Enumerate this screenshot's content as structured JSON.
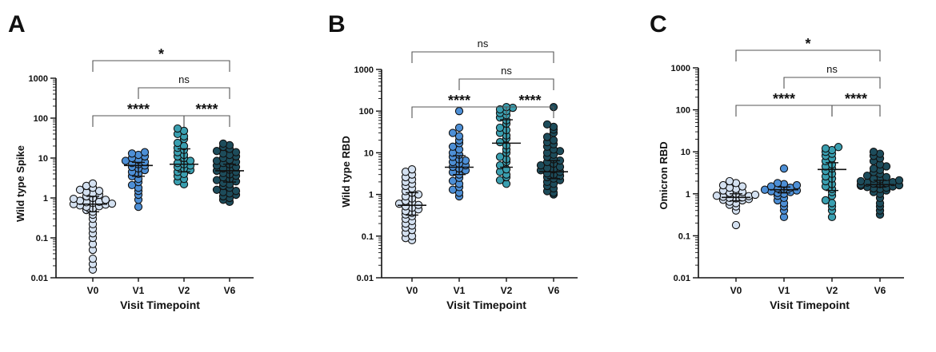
{
  "colors": {
    "V0": "#d4e1f1",
    "V1": "#4d8fd6",
    "V2": "#3a9fb0",
    "V6": "#1d4c5b",
    "stroke": "#111111"
  },
  "chart_data": [
    {
      "panel_label": "A",
      "type": "scatter",
      "ylabel": "Wild type Spike",
      "xlabel": "Visit Timepoint",
      "y_scale": "log",
      "ylim": [
        0.01,
        1000
      ],
      "y_ticks": [
        "0.01",
        "0.1",
        "1",
        "10",
        "100",
        "1000"
      ],
      "categories": [
        "V0",
        "V1",
        "V2",
        "V6"
      ],
      "series": [
        {
          "values": [
            0.016,
            0.022,
            0.03,
            0.05,
            0.07,
            0.1,
            0.13,
            0.17,
            0.22,
            0.3,
            0.38,
            0.45,
            0.5,
            0.55,
            0.6,
            0.62,
            0.65,
            0.68,
            0.7,
            0.72,
            0.75,
            0.78,
            0.8,
            0.85,
            0.9,
            0.95,
            1.0,
            1.1,
            1.2,
            1.3,
            1.4,
            1.5,
            1.6,
            1.8,
            2.0,
            2.3
          ]
        },
        {
          "values": [
            0.6,
            0.9,
            1.2,
            1.5,
            1.8,
            2.1,
            2.5,
            3.0,
            3.5,
            4.0,
            4.5,
            5.0,
            5.5,
            6.0,
            6.5,
            7.0,
            7.5,
            8.0,
            8.5,
            9.0,
            10,
            11,
            12,
            13,
            14
          ]
        },
        {
          "values": [
            2.2,
            2.6,
            3.0,
            3.5,
            4.0,
            4.5,
            5.0,
            5.5,
            6.0,
            6.5,
            7.0,
            7.5,
            8.5,
            10,
            11,
            12,
            14,
            16,
            18,
            20,
            24,
            30,
            35,
            40,
            48,
            55
          ]
        },
        {
          "values": [
            0.8,
            0.9,
            1.0,
            1.1,
            1.2,
            1.3,
            1.4,
            1.5,
            1.6,
            1.8,
            2.0,
            2.2,
            2.4,
            2.6,
            2.8,
            3.0,
            3.3,
            3.6,
            3.9,
            4.2,
            4.5,
            4.8,
            5.1,
            5.5,
            6.0,
            6.5,
            7.0,
            7.5,
            8.0,
            8.5,
            9.0,
            10,
            11,
            12,
            13,
            14,
            15,
            17,
            19,
            21,
            23
          ]
        }
      ],
      "center": [
        0.7,
        6.5,
        7.0,
        4.8
      ],
      "error_low": [
        0.45,
        3.5,
        4.5,
        2.5
      ],
      "error_high": [
        1.1,
        7.8,
        17,
        7.0
      ],
      "comparisons": [
        {
          "from": 0,
          "to": 3,
          "label": "*"
        },
        {
          "from": 1,
          "to": 3,
          "label": "ns"
        },
        {
          "from": 0,
          "to": 2,
          "label": "****"
        },
        {
          "from": 2,
          "to": 3,
          "label": "****"
        }
      ]
    },
    {
      "panel_label": "B",
      "type": "scatter",
      "ylabel": "Wild type RBD",
      "xlabel": "Visit Timepoint",
      "y_scale": "log",
      "ylim": [
        0.01,
        1000
      ],
      "y_ticks": [
        "0.01",
        "0.1",
        "1",
        "10",
        "100",
        "1000"
      ],
      "categories": [
        "V0",
        "V1",
        "V2",
        "V6"
      ],
      "series": [
        {
          "values": [
            0.08,
            0.09,
            0.1,
            0.12,
            0.14,
            0.16,
            0.18,
            0.2,
            0.23,
            0.26,
            0.3,
            0.33,
            0.36,
            0.4,
            0.44,
            0.48,
            0.52,
            0.56,
            0.6,
            0.65,
            0.7,
            0.8,
            0.9,
            1.0,
            1.1,
            1.2,
            1.4,
            1.6,
            1.8,
            2.0,
            2.3,
            2.6,
            3.0,
            3.5,
            4.0
          ]
        },
        {
          "values": [
            0.9,
            1.1,
            1.3,
            1.5,
            1.8,
            2.1,
            2.5,
            3.0,
            3.4,
            3.8,
            4.2,
            4.6,
            5.0,
            5.5,
            6.0,
            6.5,
            7.0,
            8.0,
            9.0,
            10,
            12,
            14,
            17,
            20,
            25,
            30,
            40,
            100
          ]
        },
        {
          "values": [
            1.8,
            2.2,
            2.6,
            3.0,
            3.5,
            4.0,
            5.0,
            6.0,
            7.0,
            8.0,
            10,
            12,
            15,
            18,
            22,
            26,
            30,
            35,
            40,
            50,
            60,
            70,
            80,
            90,
            100,
            110,
            120,
            125
          ]
        },
        {
          "values": [
            1.0,
            1.1,
            1.2,
            1.4,
            1.6,
            1.8,
            2.0,
            2.2,
            2.4,
            2.6,
            2.8,
            3.0,
            3.2,
            3.5,
            3.8,
            4.0,
            4.3,
            4.6,
            5.0,
            5.5,
            6.0,
            6.5,
            7.0,
            8.0,
            9.0,
            10,
            11,
            12,
            14,
            16,
            18,
            20,
            24,
            30,
            36,
            42,
            48,
            125
          ]
        }
      ],
      "center": [
        0.55,
        4.5,
        17,
        3.5
      ],
      "error_low": [
        0.32,
        3.0,
        4.5,
        2.4
      ],
      "error_high": [
        1.1,
        8.5,
        62,
        6.5
      ],
      "comparisons": [
        {
          "from": 0,
          "to": 3,
          "label": "ns"
        },
        {
          "from": 1,
          "to": 3,
          "label": "ns"
        },
        {
          "from": 0,
          "to": 2,
          "label": "****"
        },
        {
          "from": 2,
          "to": 3,
          "label": "****"
        }
      ]
    },
    {
      "panel_label": "C",
      "type": "scatter",
      "ylabel": "Omicron RBD",
      "xlabel": "Visit Timepoint",
      "y_scale": "log",
      "ylim": [
        0.01,
        1000
      ],
      "y_ticks": [
        "0.01",
        "0.1",
        "1",
        "10",
        "100",
        "1000"
      ],
      "categories": [
        "V0",
        "V1",
        "V2",
        "V6"
      ],
      "series": [
        {
          "values": [
            0.18,
            0.4,
            0.5,
            0.55,
            0.6,
            0.65,
            0.7,
            0.72,
            0.75,
            0.78,
            0.8,
            0.82,
            0.85,
            0.88,
            0.9,
            0.95,
            1.0,
            1.05,
            1.1,
            1.2,
            1.3,
            1.4,
            1.5,
            1.6,
            1.8,
            2.0
          ]
        },
        {
          "values": [
            0.28,
            0.4,
            0.5,
            0.6,
            0.7,
            0.8,
            0.9,
            1.0,
            1.05,
            1.1,
            1.15,
            1.2,
            1.25,
            1.3,
            1.35,
            1.4,
            1.5,
            1.6,
            1.7,
            1.8,
            4.0
          ]
        },
        {
          "values": [
            0.28,
            0.4,
            0.5,
            0.6,
            0.7,
            0.9,
            1.1,
            1.3,
            1.5,
            1.7,
            2.0,
            2.3,
            2.6,
            3.0,
            3.5,
            4.0,
            4.5,
            5.0,
            6.0,
            7.0,
            8.0,
            9.0,
            10,
            11,
            12,
            13
          ]
        },
        {
          "values": [
            0.32,
            0.4,
            0.5,
            0.6,
            0.8,
            1.0,
            1.1,
            1.2,
            1.3,
            1.35,
            1.4,
            1.45,
            1.5,
            1.55,
            1.6,
            1.65,
            1.7,
            1.75,
            1.8,
            1.85,
            1.9,
            2.0,
            2.1,
            2.2,
            2.3,
            2.5,
            2.7,
            3.0,
            3.3,
            3.7,
            4.0,
            4.5,
            5.0,
            6.0,
            7.0,
            8.0,
            9.0,
            10
          ]
        }
      ],
      "center": [
        0.82,
        1.25,
        3.8,
        1.65
      ],
      "error_low": [
        0.68,
        1.05,
        1.2,
        1.45
      ],
      "error_high": [
        1.0,
        1.45,
        5.5,
        2.1
      ],
      "comparisons": [
        {
          "from": 0,
          "to": 3,
          "label": "*"
        },
        {
          "from": 1,
          "to": 3,
          "label": "ns"
        },
        {
          "from": 0,
          "to": 2,
          "label": "****"
        },
        {
          "from": 2,
          "to": 3,
          "label": "****"
        }
      ]
    }
  ]
}
